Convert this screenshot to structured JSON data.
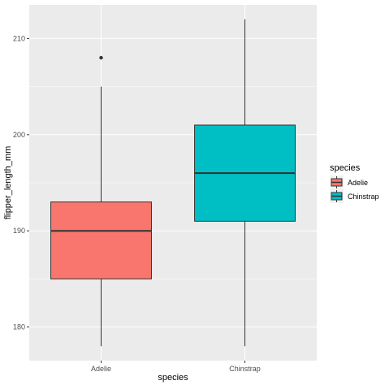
{
  "chart_data": {
    "type": "boxplot",
    "xlabel": "species",
    "ylabel": "flipper_length_mm",
    "categories": [
      "Adelie",
      "Chinstrap"
    ],
    "ylim": [
      176.5,
      213.5
    ],
    "y_ticks": [
      180,
      190,
      200,
      210
    ],
    "grid": true,
    "legend": {
      "title": "species",
      "position": "right",
      "entries": [
        "Adelie",
        "Chinstrap"
      ]
    },
    "series": [
      {
        "name": "Adelie",
        "color": "#F8766D",
        "whisker_low": 178,
        "q1": 185,
        "median": 190,
        "q3": 193,
        "whisker_high": 205,
        "outliers": [
          208
        ]
      },
      {
        "name": "Chinstrap",
        "color": "#00BFC4",
        "whisker_low": 178,
        "q1": 191,
        "median": 196,
        "q3": 201,
        "whisker_high": 212,
        "outliers": []
      }
    ],
    "panel_background": "#EBEBEB",
    "grid_color": "#FFFFFF"
  }
}
